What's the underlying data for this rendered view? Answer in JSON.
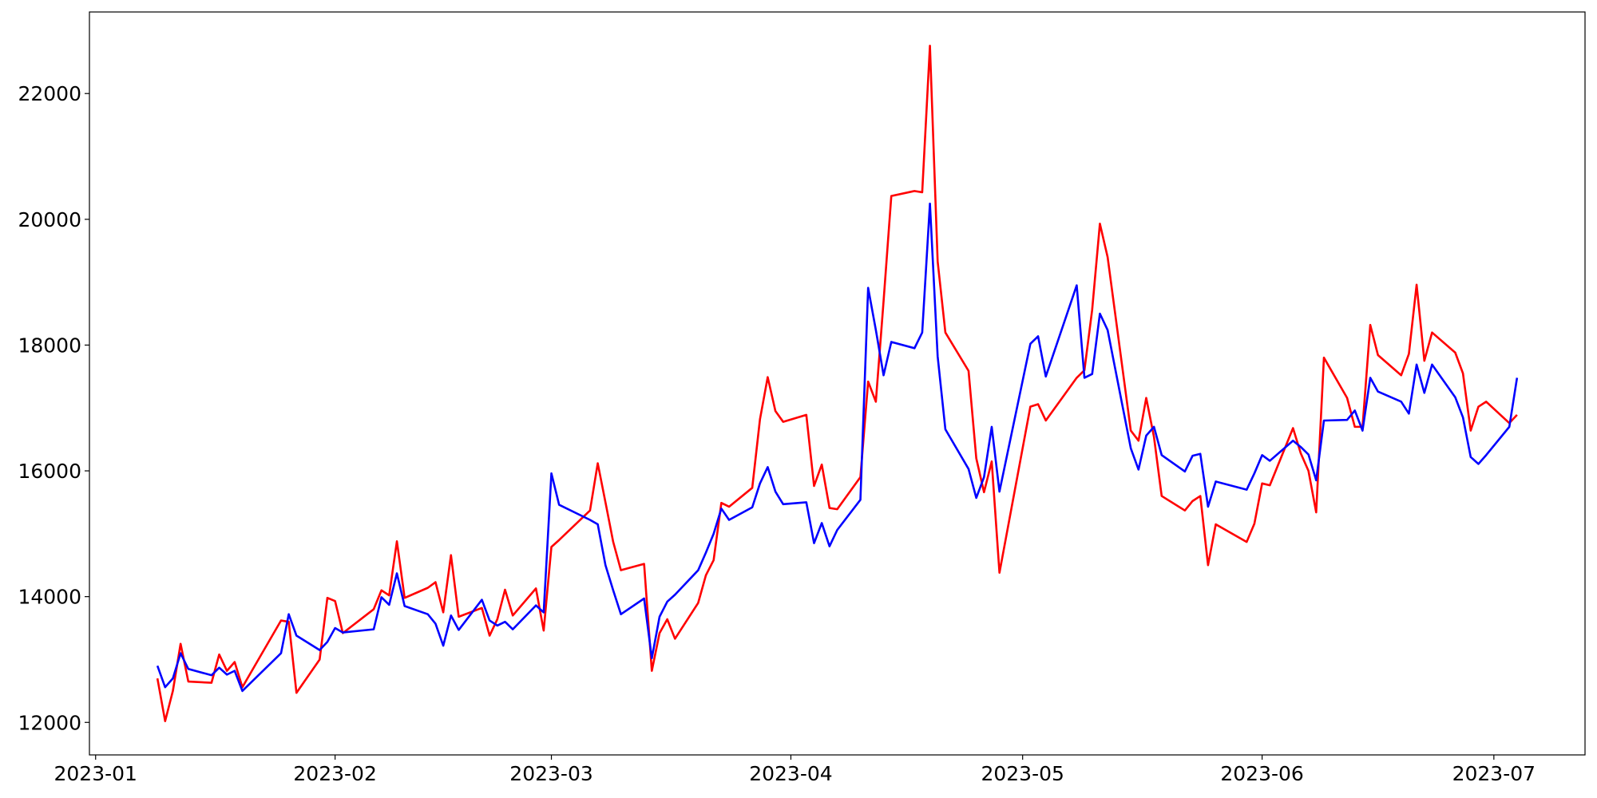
{
  "chart_data": {
    "type": "line",
    "x": [
      "2023-01-09",
      "2023-01-10",
      "2023-01-11",
      "2023-01-12",
      "2023-01-13",
      "2023-01-16",
      "2023-01-17",
      "2023-01-18",
      "2023-01-19",
      "2023-01-20",
      "2023-01-25",
      "2023-01-26",
      "2023-01-27",
      "2023-01-30",
      "2023-01-31",
      "2023-02-01",
      "2023-02-02",
      "2023-02-06",
      "2023-02-07",
      "2023-02-08",
      "2023-02-09",
      "2023-02-10",
      "2023-02-13",
      "2023-02-14",
      "2023-02-15",
      "2023-02-16",
      "2023-02-17",
      "2023-02-20",
      "2023-02-21",
      "2023-02-22",
      "2023-02-23",
      "2023-02-24",
      "2023-02-27",
      "2023-02-28",
      "2023-03-01",
      "2023-03-02",
      "2023-03-06",
      "2023-03-07",
      "2023-03-08",
      "2023-03-09",
      "2023-03-10",
      "2023-03-13",
      "2023-03-14",
      "2023-03-15",
      "2023-03-16",
      "2023-03-17",
      "2023-03-20",
      "2023-03-21",
      "2023-03-22",
      "2023-03-23",
      "2023-03-24",
      "2023-03-27",
      "2023-03-28",
      "2023-03-29",
      "2023-03-30",
      "2023-03-31",
      "2023-04-03",
      "2023-04-04",
      "2023-04-05",
      "2023-04-06",
      "2023-04-07",
      "2023-04-10",
      "2023-04-11",
      "2023-04-12",
      "2023-04-13",
      "2023-04-14",
      "2023-04-17",
      "2023-04-18",
      "2023-04-19",
      "2023-04-20",
      "2023-04-21",
      "2023-04-24",
      "2023-04-25",
      "2023-04-26",
      "2023-04-27",
      "2023-04-28",
      "2023-05-02",
      "2023-05-03",
      "2023-05-04",
      "2023-05-08",
      "2023-05-09",
      "2023-05-10",
      "2023-05-11",
      "2023-05-12",
      "2023-05-15",
      "2023-05-16",
      "2023-05-17",
      "2023-05-18",
      "2023-05-19",
      "2023-05-22",
      "2023-05-23",
      "2023-05-24",
      "2023-05-25",
      "2023-05-26",
      "2023-05-30",
      "2023-05-31",
      "2023-06-01",
      "2023-06-02",
      "2023-06-05",
      "2023-06-06",
      "2023-06-07",
      "2023-06-08",
      "2023-06-09",
      "2023-06-12",
      "2023-06-13",
      "2023-06-14",
      "2023-06-15",
      "2023-06-16",
      "2023-06-19",
      "2023-06-20",
      "2023-06-21",
      "2023-06-22",
      "2023-06-23",
      "2023-06-26",
      "2023-06-27",
      "2023-06-28",
      "2023-06-29",
      "2023-06-30",
      "2023-07-03",
      "2023-07-04"
    ],
    "series": [
      {
        "color": "#ff0000",
        "values": [
          12700,
          12020,
          12500,
          13250,
          12650,
          12630,
          13080,
          12820,
          12960,
          12560,
          13620,
          13600,
          12470,
          13000,
          13980,
          13930,
          13420,
          13800,
          14100,
          14020,
          14880,
          13980,
          14140,
          14230,
          13750,
          14660,
          13680,
          13820,
          13380,
          13640,
          14110,
          13700,
          14130,
          13460,
          14790,
          14900,
          15370,
          16120,
          15500,
          14870,
          14420,
          14520,
          12820,
          13420,
          13640,
          13330,
          13900,
          14340,
          14580,
          15490,
          15430,
          15730,
          16820,
          17490,
          16950,
          16780,
          16890,
          15760,
          16100,
          15410,
          15390,
          15900,
          17420,
          17100,
          18700,
          20370,
          20450,
          20430,
          22760,
          19330,
          18200,
          17590,
          16200,
          15660,
          16150,
          14380,
          17020,
          17060,
          16800,
          17480,
          17600,
          18560,
          19930,
          19400,
          16640,
          16480,
          17160,
          16540,
          15600,
          15370,
          15520,
          15600,
          14500,
          15150,
          14870,
          15160,
          15800,
          15770,
          16680,
          16280,
          16000,
          15340,
          17800,
          17160,
          16700,
          16700,
          18320,
          17840,
          17520,
          17860,
          18960,
          17750,
          18200,
          17880,
          17550,
          16640,
          17020,
          17100,
          16760,
          16890
        ]
      },
      {
        "color": "#0000ff",
        "values": [
          12900,
          12560,
          12700,
          13100,
          12850,
          12750,
          12870,
          12760,
          12820,
          12500,
          13100,
          13720,
          13380,
          13150,
          13280,
          13500,
          13430,
          13480,
          13990,
          13870,
          14370,
          13850,
          13720,
          13570,
          13220,
          13700,
          13470,
          13950,
          13620,
          13540,
          13600,
          13480,
          13860,
          13750,
          15960,
          15460,
          15220,
          15150,
          14500,
          14100,
          13720,
          13970,
          13020,
          13680,
          13920,
          14030,
          14420,
          14700,
          15000,
          15400,
          15220,
          15420,
          15800,
          16060,
          15670,
          15470,
          15500,
          14850,
          15170,
          14800,
          15060,
          15540,
          18910,
          18240,
          17520,
          18050,
          17950,
          18200,
          20250,
          17820,
          16660,
          16030,
          15570,
          15900,
          16700,
          15670,
          18020,
          18140,
          17500,
          18950,
          17480,
          17540,
          18500,
          18240,
          16360,
          16020,
          16560,
          16700,
          16250,
          15990,
          16240,
          16270,
          15430,
          15830,
          15700,
          15960,
          16250,
          16160,
          16480,
          16380,
          16260,
          15850,
          16800,
          16810,
          16960,
          16640,
          17480,
          17260,
          17100,
          16910,
          17690,
          17240,
          17690,
          17170,
          16850,
          16220,
          16110,
          16250,
          16700,
          17480
        ]
      }
    ],
    "xticks": [
      "2023-01",
      "2023-02",
      "2023-03",
      "2023-04",
      "2023-05",
      "2023-06",
      "2023-07"
    ],
    "ylim": [
      11483,
      23297
    ],
    "yticks": [
      12000,
      14000,
      16000,
      18000,
      20000,
      22000
    ]
  }
}
